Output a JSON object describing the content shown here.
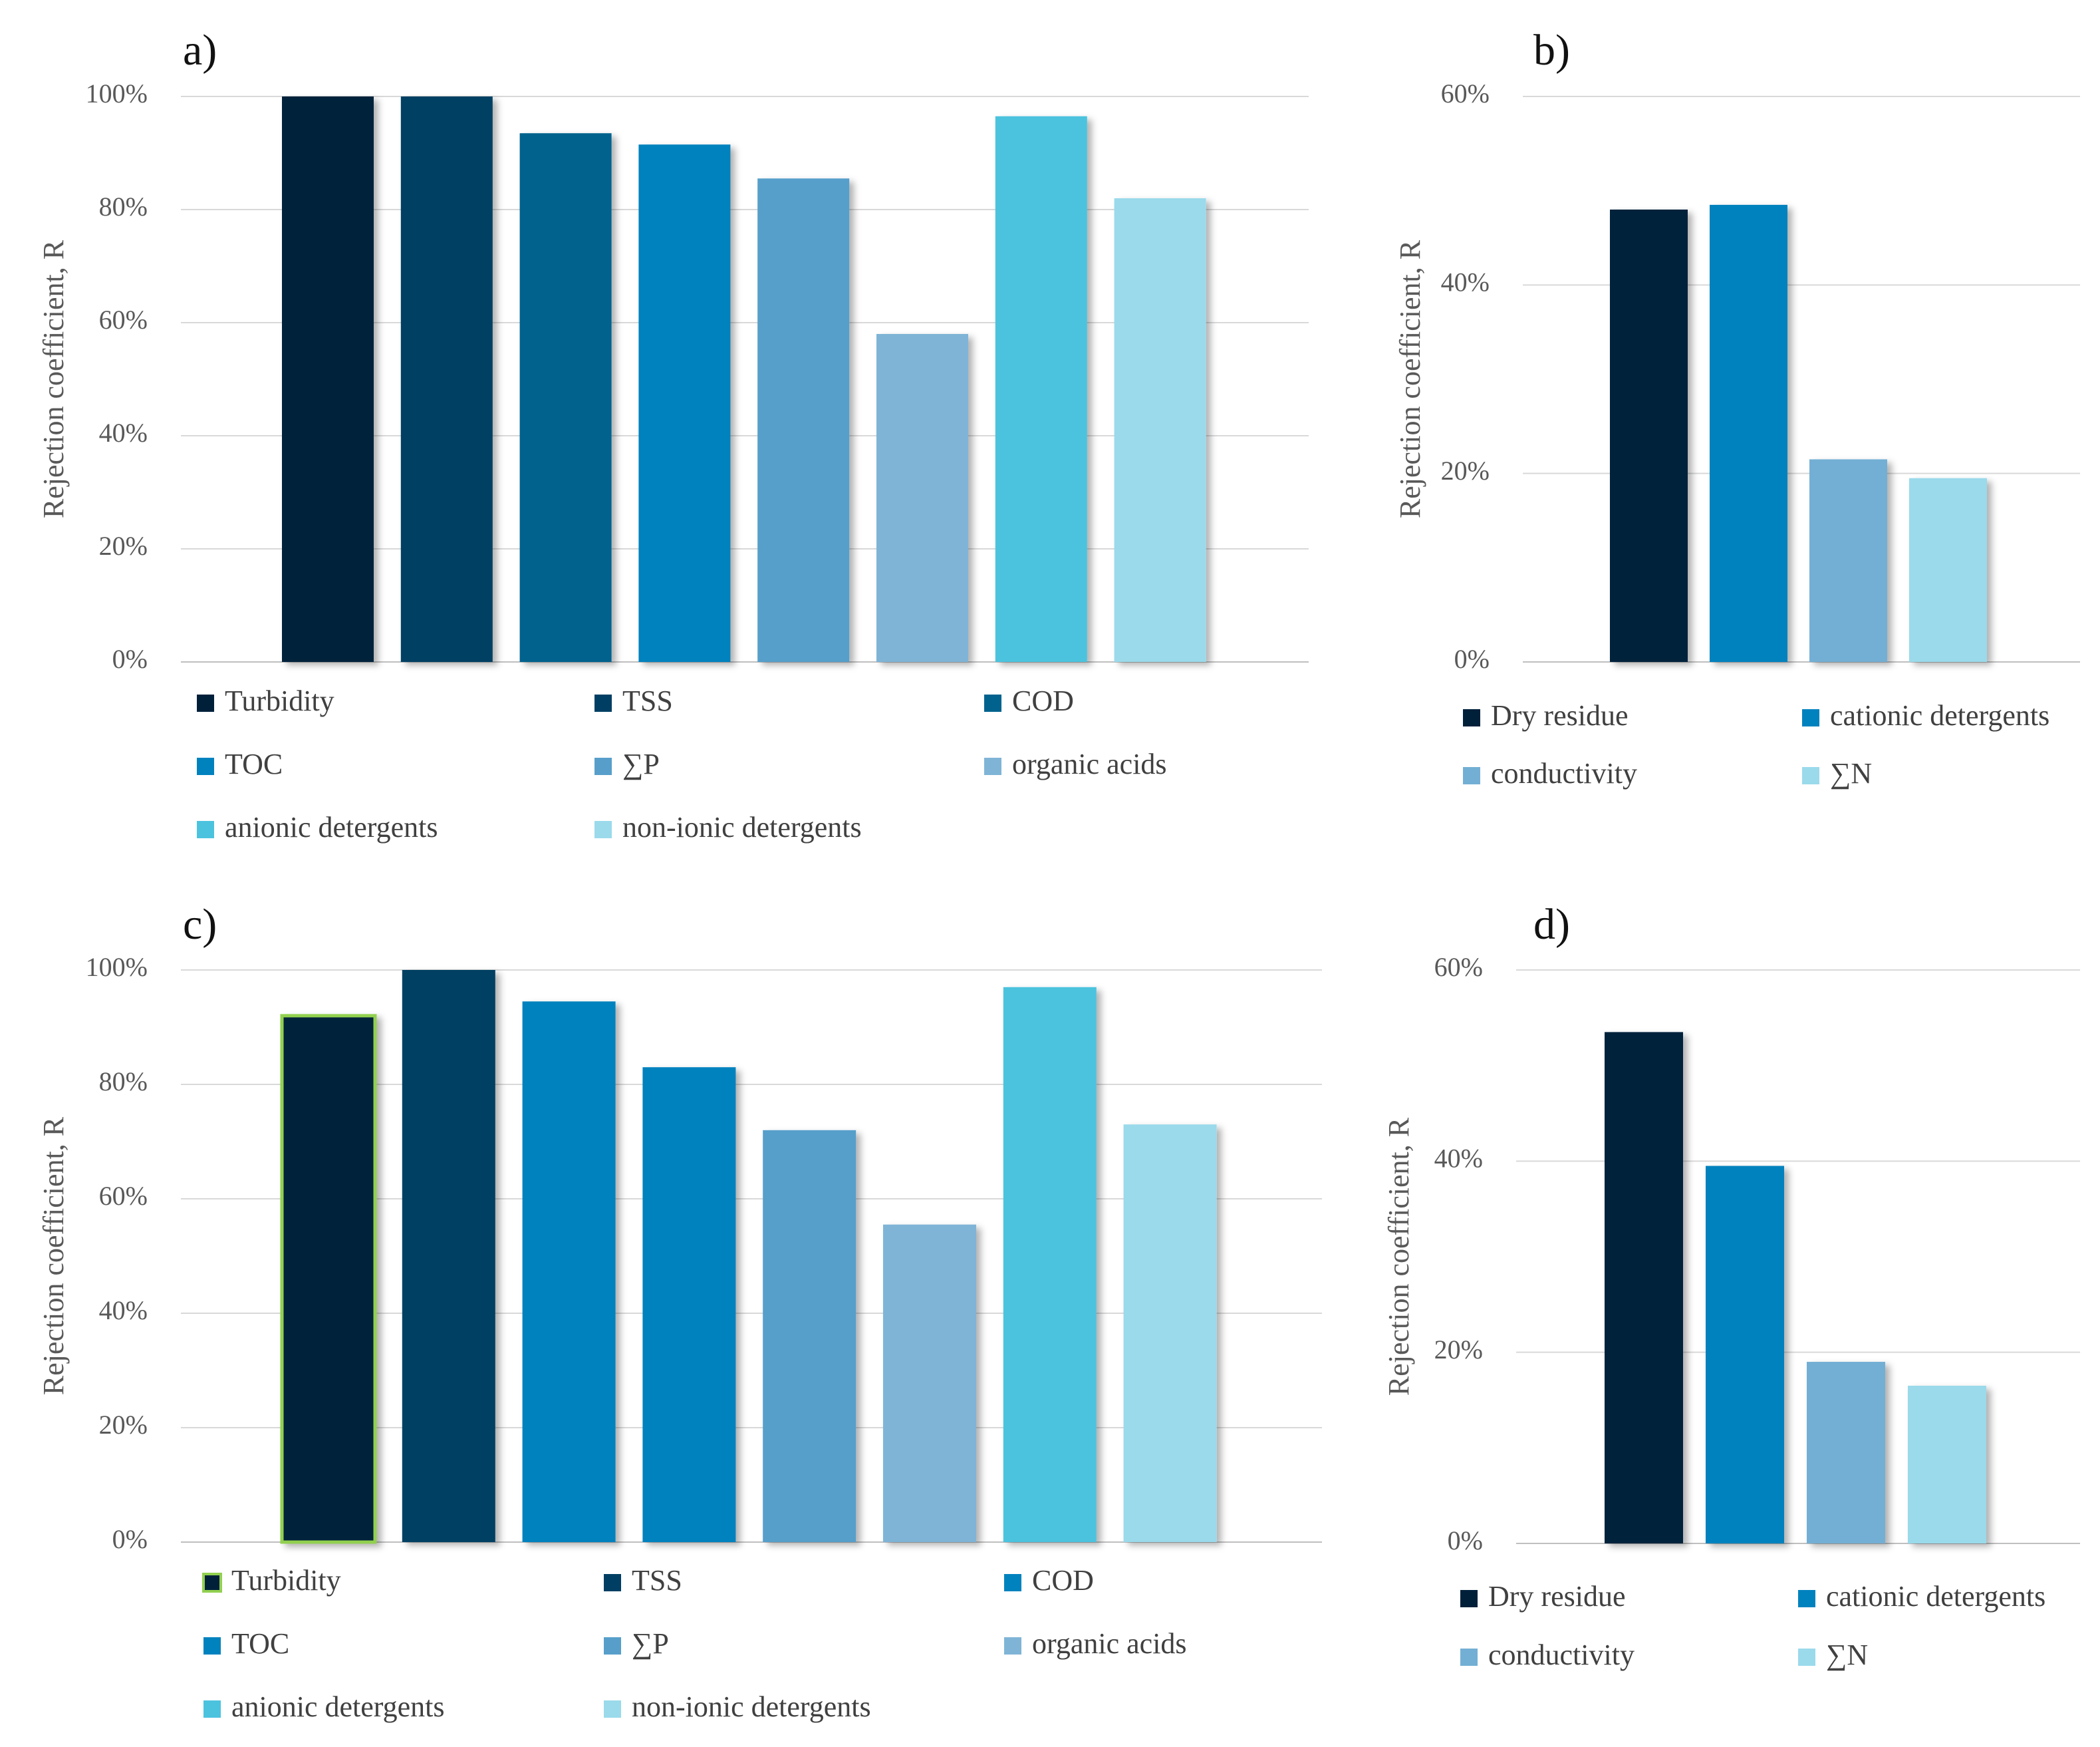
{
  "chart_data": [
    {
      "type": "bar",
      "panel_label": "a)",
      "ylabel": "Rejection coefficient, R",
      "xlabel": "",
      "ylim": [
        0,
        100
      ],
      "yticks": [
        0,
        20,
        40,
        60,
        80,
        100
      ],
      "ytick_labels": [
        "0%",
        "20%",
        "40%",
        "60%",
        "80%",
        "100%"
      ],
      "grid": true,
      "legend_position": "bottom",
      "categories": [
        "Turbidity",
        "TSS",
        "COD",
        "TOC",
        "∑P",
        "organic acids",
        "anionic detergents",
        "non-ionic detergents"
      ],
      "values": [
        100,
        100,
        93.5,
        91.5,
        85.5,
        58,
        96.5,
        82
      ],
      "colors": [
        "#00203a",
        "#003f63",
        "#00628d",
        "#0082be",
        "#579fca",
        "#7fb4d6",
        "#4cc3de",
        "#9adaeb"
      ]
    },
    {
      "type": "bar",
      "panel_label": "b)",
      "ylabel": "Rejection coefficient, R",
      "xlabel": "",
      "ylim": [
        0,
        60
      ],
      "yticks": [
        0,
        20,
        40,
        60
      ],
      "ytick_labels": [
        "0%",
        "20%",
        "40%",
        "60%"
      ],
      "grid": true,
      "legend_position": "bottom",
      "categories": [
        "Dry residue",
        "cationic detergents",
        "conductivity",
        "∑N"
      ],
      "values": [
        48,
        48.5,
        21.5,
        19.5
      ],
      "colors": [
        "#00203a",
        "#0082be",
        "#73afd4",
        "#9adaeb"
      ]
    },
    {
      "type": "bar",
      "panel_label": "c)",
      "ylabel": "Rejection coefficient, R",
      "xlabel": "",
      "ylim": [
        0,
        100
      ],
      "yticks": [
        0,
        20,
        40,
        60,
        80,
        100
      ],
      "ytick_labels": [
        "0%",
        "20%",
        "40%",
        "60%",
        "80%",
        "100%"
      ],
      "grid": true,
      "legend_position": "bottom",
      "categories": [
        "Turbidity",
        "TSS",
        "COD",
        "TOC",
        "∑P",
        "organic acids",
        "anionic detergents",
        "non-ionic detergents"
      ],
      "values": [
        92,
        100,
        94.5,
        83,
        72,
        55.5,
        97,
        73
      ],
      "colors": [
        "#00203a",
        "#003f63",
        "#0082be",
        "#0082be",
        "#579fca",
        "#7fb4d6",
        "#4cc3de",
        "#9adaeb"
      ],
      "highlight_color": "#92d050"
    },
    {
      "type": "bar",
      "panel_label": "d)",
      "ylabel": "Rejection coefficient, R",
      "xlabel": "",
      "ylim": [
        0,
        60
      ],
      "yticks": [
        0,
        20,
        40,
        60
      ],
      "ytick_labels": [
        "0%",
        "20%",
        "40%",
        "60%"
      ],
      "grid": true,
      "legend_position": "bottom",
      "categories": [
        "Dry residue",
        "cationic detergents",
        "conductivity",
        "∑N"
      ],
      "values": [
        53.5,
        39.5,
        19,
        16.5
      ],
      "colors": [
        "#00203a",
        "#0082be",
        "#73afd4",
        "#9adaeb"
      ]
    }
  ]
}
